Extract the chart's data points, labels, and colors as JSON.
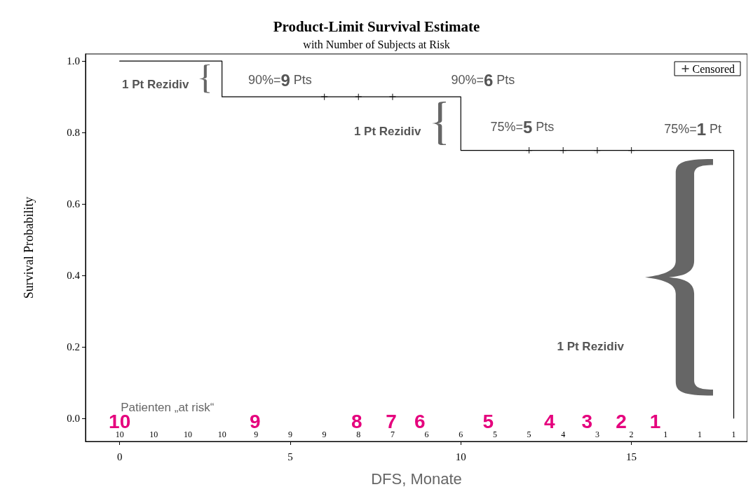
{
  "chart_data": {
    "type": "step",
    "title": "Product-Limit Survival Estimate",
    "subtitle": "with Number of Subjects at Risk",
    "xlabel": "DFS, Monate",
    "ylabel": "Survival Probability",
    "xlim": [
      -1,
      18.4
    ],
    "ylim": [
      -0.065,
      1.02
    ],
    "xticks": [
      0,
      5,
      10,
      15
    ],
    "yticks": [
      {
        "value": 0,
        "label": "0.0"
      },
      0.2,
      0.4,
      0.6,
      0.8,
      {
        "value": 1,
        "label": "1.0"
      }
    ],
    "grid": false,
    "legend": "top right",
    "series": [
      {
        "type": "step",
        "color": "#000000",
        "marker": "none",
        "x": [
          0,
          3,
          10,
          18,
          18
        ],
        "values": [
          1,
          0.9,
          0.75,
          0.75,
          0
        ]
      },
      {
        "type": "scatter",
        "name": "Censored",
        "color": "#000000",
        "marker": "cross",
        "x": [
          6,
          7,
          8,
          12,
          13,
          14,
          15
        ],
        "values": [
          0.9,
          0.9,
          0.9,
          0.75,
          0.75,
          0.75,
          0.75
        ]
      }
    ],
    "annotations": [
      "1 Pt Rezidiv",
      "90%=9 Pts",
      "90%=6 Pts",
      "1 Pt Rezidiv",
      "75%=5 Pts",
      "75%=1 Pt",
      "1 Pt Rezidiv",
      "Patienten „at risk“",
      "10",
      "9",
      "8",
      "7",
      "6",
      "5",
      "4",
      "3",
      "2",
      "1",
      "10",
      "10",
      "10",
      "10",
      "9",
      "9",
      "9",
      "8",
      "7",
      "6",
      "6",
      "5",
      "5",
      "4",
      "3",
      "2",
      "1",
      "1",
      "1"
    ]
  }
}
